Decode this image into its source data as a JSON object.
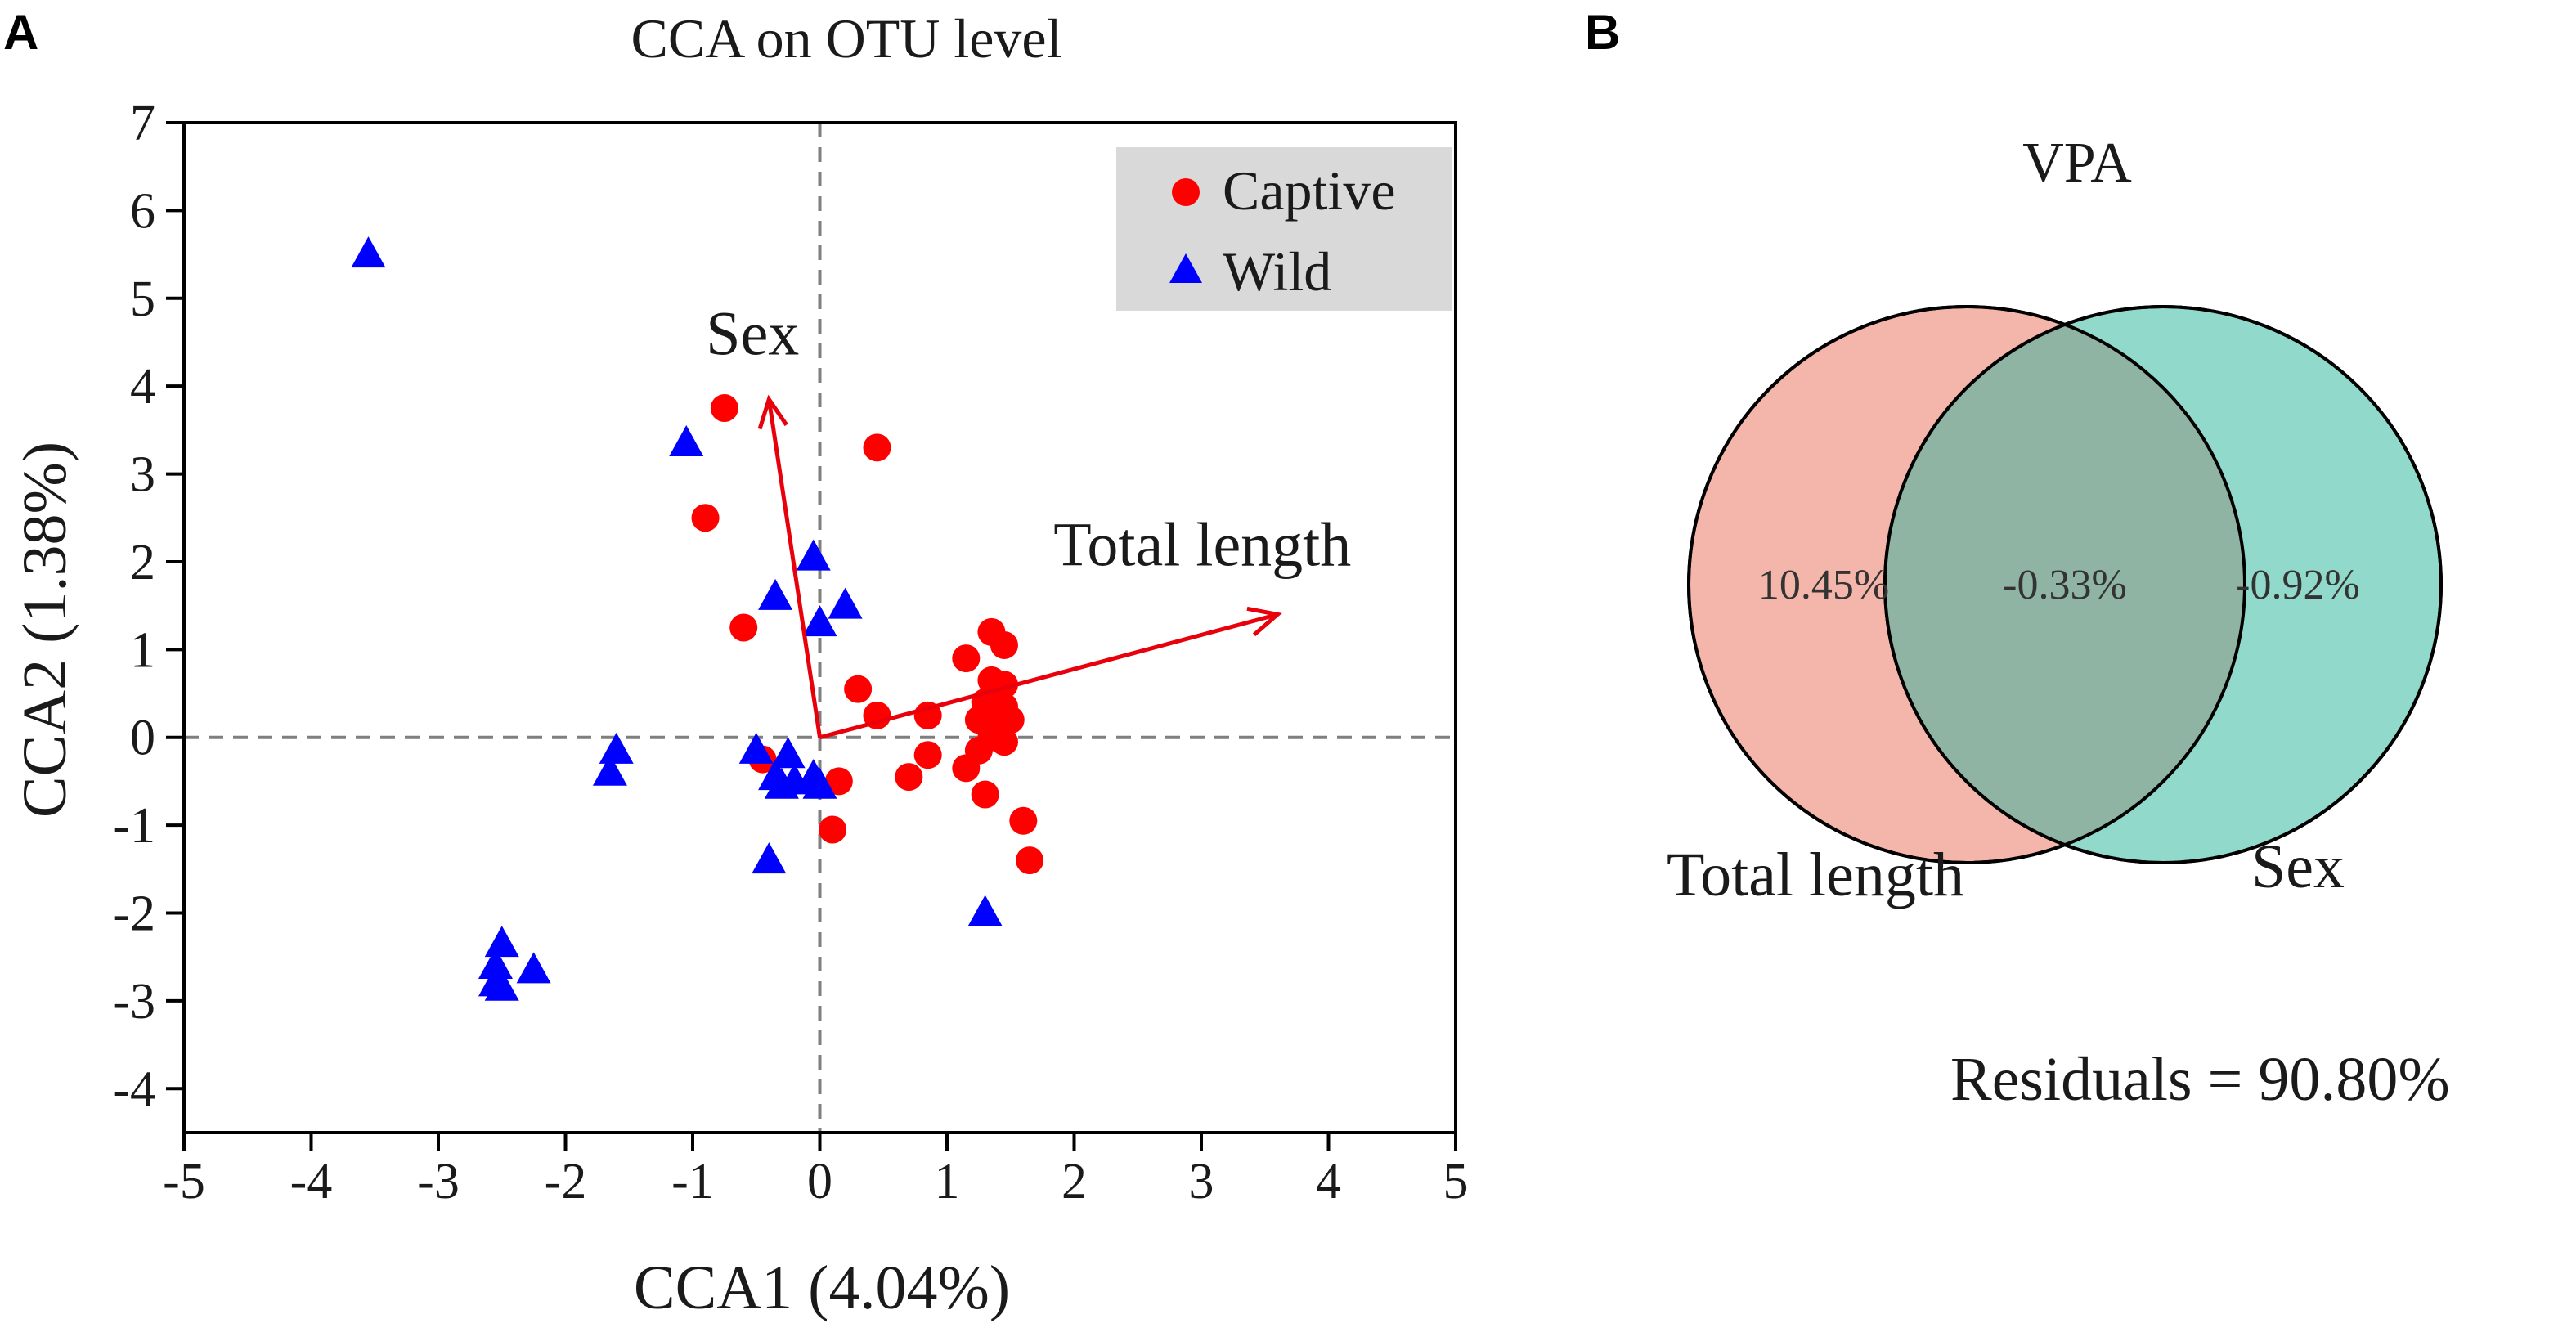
{
  "panels": {
    "a": "A",
    "b": "B"
  },
  "chart_data": [
    {
      "type": "scatter",
      "title": "CCA on OTU level",
      "xlabel": "CCA1 (4.04%)",
      "ylabel": "CCA2 (1.38%)",
      "xlim": [
        -5,
        5
      ],
      "ylim": [
        -4.5,
        7
      ],
      "xticks": [
        -5,
        -4,
        -3,
        -2,
        -1,
        0,
        1,
        2,
        3,
        4,
        5
      ],
      "yticks": [
        -4,
        -3,
        -2,
        -1,
        0,
        1,
        2,
        3,
        4,
        5,
        6,
        7
      ],
      "legend_position": "top-right",
      "colors": {
        "captive": "#ff0000",
        "wild": "#0000ff",
        "arrow": "#e8000b",
        "legend_bg": "#d9d9d9",
        "ref_line": "#7f7f7f"
      },
      "series": [
        {
          "name": "Captive",
          "marker": "circle",
          "points": [
            [
              -0.75,
              3.75
            ],
            [
              0.45,
              3.3
            ],
            [
              -0.9,
              2.5
            ],
            [
              -0.6,
              1.25
            ],
            [
              1.35,
              1.2
            ],
            [
              1.45,
              1.05
            ],
            [
              1.15,
              0.9
            ],
            [
              1.35,
              0.65
            ],
            [
              1.45,
              0.6
            ],
            [
              0.3,
              0.55
            ],
            [
              1.3,
              0.4
            ],
            [
              1.45,
              0.35
            ],
            [
              0.45,
              0.25
            ],
            [
              0.85,
              0.25
            ],
            [
              1.25,
              0.2
            ],
            [
              1.4,
              0.2
            ],
            [
              1.5,
              0.2
            ],
            [
              1.35,
              0.0
            ],
            [
              1.45,
              -0.05
            ],
            [
              1.25,
              -0.15
            ],
            [
              0.85,
              -0.2
            ],
            [
              1.15,
              -0.35
            ],
            [
              0.7,
              -0.45
            ],
            [
              0.15,
              -0.5
            ],
            [
              -0.45,
              -0.25
            ],
            [
              1.3,
              -0.65
            ],
            [
              1.6,
              -0.95
            ],
            [
              0.1,
              -1.05
            ],
            [
              1.65,
              -1.4
            ]
          ]
        },
        {
          "name": "Wild",
          "marker": "triangle",
          "points": [
            [
              -3.55,
              5.5
            ],
            [
              -1.05,
              3.35
            ],
            [
              -0.05,
              2.05
            ],
            [
              -0.35,
              1.6
            ],
            [
              0.2,
              1.5
            ],
            [
              0.0,
              1.3
            ],
            [
              -1.6,
              -0.15
            ],
            [
              -1.65,
              -0.4
            ],
            [
              -0.5,
              -0.15
            ],
            [
              -0.25,
              -0.2
            ],
            [
              -0.35,
              -0.45
            ],
            [
              -0.2,
              -0.5
            ],
            [
              -0.05,
              -0.45
            ],
            [
              0.0,
              -0.55
            ],
            [
              -0.3,
              -0.55
            ],
            [
              -0.4,
              -1.4
            ],
            [
              1.3,
              -2.0
            ],
            [
              -2.5,
              -2.35
            ],
            [
              -2.55,
              -2.6
            ],
            [
              -2.25,
              -2.65
            ],
            [
              -2.55,
              -2.8
            ],
            [
              -2.5,
              -2.85
            ]
          ]
        }
      ],
      "arrows": [
        {
          "label": "Sex",
          "x": -0.4,
          "y": 3.85
        },
        {
          "label": "Total length",
          "x": 3.6,
          "y": 1.4
        }
      ]
    },
    {
      "type": "venn",
      "title": "VPA",
      "sets": [
        {
          "label": "Total length",
          "value": "10.45%",
          "color": "#f4b5aa"
        },
        {
          "label": "Sex",
          "value": "-0.92%",
          "color": "#91d9cb"
        }
      ],
      "intersection": {
        "value": "-0.33%",
        "color": "#8fb4a3"
      },
      "residuals": "Residuals = 90.80%"
    }
  ]
}
